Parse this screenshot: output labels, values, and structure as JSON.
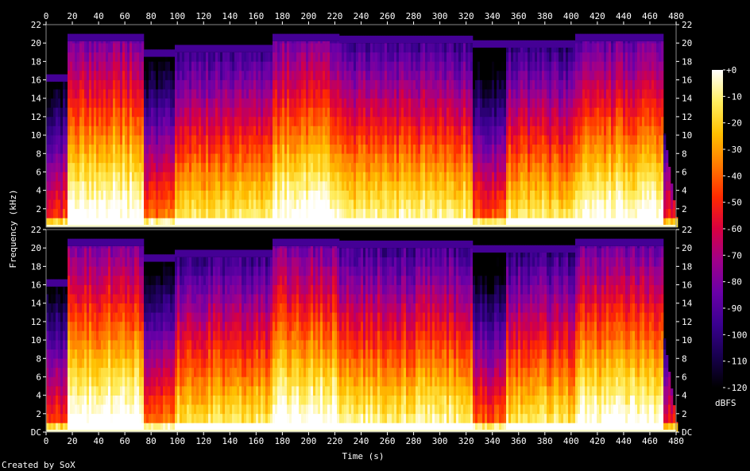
{
  "chart_data": {
    "type": "heatmap",
    "title": "",
    "xlabel": "Time (s)",
    "ylabel": "Frequency (kHz)",
    "x_range": [
      0,
      480
    ],
    "y_range_khz": [
      0,
      22
    ],
    "x_ticks": [
      "0",
      "20",
      "40",
      "60",
      "80",
      "100",
      "120",
      "140",
      "160",
      "180",
      "200",
      "220",
      "240",
      "260",
      "280",
      "300",
      "320",
      "340",
      "360",
      "380",
      "400",
      "420",
      "440",
      "460",
      "480"
    ],
    "y_ticks_top": [
      "2",
      "4",
      "6",
      "8",
      "10",
      "12",
      "14",
      "16",
      "18",
      "20",
      "22"
    ],
    "y_ticks_bottom": [
      "DC",
      "2",
      "4",
      "6",
      "8",
      "10",
      "12",
      "14",
      "16",
      "18",
      "20",
      "22"
    ],
    "channels": 2,
    "colorbar": {
      "unit": "dBFS",
      "range": [
        -120,
        0
      ],
      "ticks": [
        "+0",
        "-10",
        "-20",
        "-30",
        "-40",
        "-50",
        "-60",
        "-70",
        "-80",
        "-90",
        "-100",
        "-110",
        "-120"
      ]
    },
    "segments": [
      {
        "t": [
          0,
          16
        ],
        "cutoff_khz": 15.8,
        "level": 0.35
      },
      {
        "t": [
          16,
          73
        ],
        "cutoff_khz": 20.2,
        "level": 0.78
      },
      {
        "t": [
          73,
          98
        ],
        "cutoff_khz": 18.5,
        "level": 0.42
      },
      {
        "t": [
          98,
          172
        ],
        "cutoff_khz": 19.0,
        "level": 0.62
      },
      {
        "t": [
          172,
          222
        ],
        "cutoff_khz": 20.2,
        "level": 0.76
      },
      {
        "t": [
          222,
          325
        ],
        "cutoff_khz": 20.0,
        "level": 0.66
      },
      {
        "t": [
          325,
          350
        ],
        "cutoff_khz": 19.5,
        "level": 0.38
      },
      {
        "t": [
          350,
          402
        ],
        "cutoff_khz": 19.5,
        "level": 0.62
      },
      {
        "t": [
          402,
          470
        ],
        "cutoff_khz": 20.2,
        "level": 0.74
      },
      {
        "t": [
          470,
          480
        ],
        "cutoff_khz": 10.0,
        "level": 0.3
      }
    ],
    "palette": [
      "#000000",
      "#180050",
      "#3a0090",
      "#6a00a8",
      "#a0008a",
      "#d80040",
      "#ff2a00",
      "#ff7a00",
      "#ffc000",
      "#ffee60",
      "#ffffff"
    ]
  },
  "footer": {
    "credit": "Created by SoX"
  }
}
